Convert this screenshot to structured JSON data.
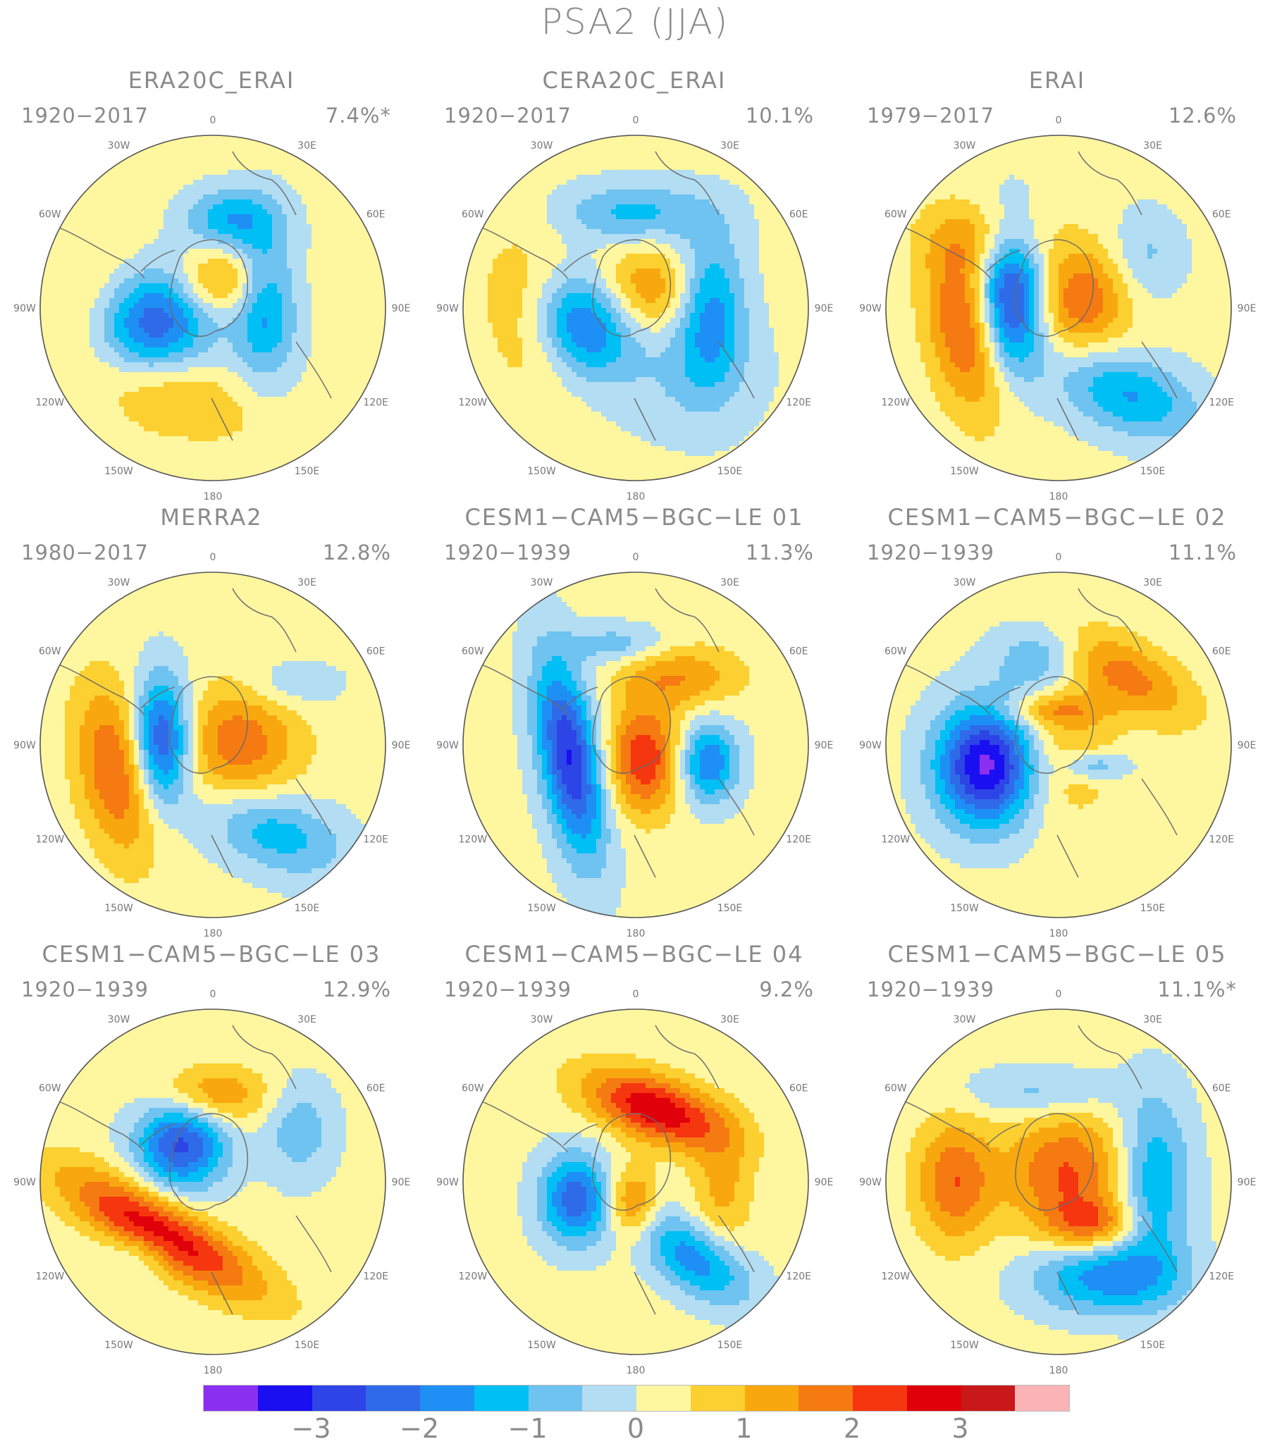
{
  "title": "PSA2 (JJA)",
  "lon_labels": {
    "l0": "0",
    "l30w": "30W",
    "l30e": "30E",
    "l60w": "60W",
    "l60e": "60E",
    "l90w": "90W",
    "l90e": "90E",
    "l120w": "120W",
    "l120e": "120E",
    "l150w": "150W",
    "l150e": "150E",
    "l180": "180"
  },
  "panels": [
    {
      "title": "ERA20C_ERAI",
      "period": "1920−2017",
      "variance": "7.4%*",
      "blobs": [
        [
          -0.35,
          -0.08,
          0.26,
          0.22,
          -3.2,
          40
        ],
        [
          0.3,
          0.05,
          0.13,
          0.3,
          -2.0,
          0
        ],
        [
          0.05,
          0.15,
          0.22,
          0.14,
          1.7,
          0
        ],
        [
          0.1,
          0.52,
          0.18,
          0.12,
          -1.5,
          0
        ],
        [
          -0.55,
          -0.1,
          0.28,
          0.4,
          0.9,
          20
        ],
        [
          -0.2,
          -0.5,
          0.35,
          0.15,
          0.8,
          -20
        ]
      ]
    },
    {
      "title": "CERA20C_ERAI",
      "period": "1920−2017",
      "variance": "10.1%",
      "blobs": [
        [
          -0.3,
          -0.08,
          0.2,
          0.22,
          -2.6,
          30
        ],
        [
          0.43,
          0.0,
          0.14,
          0.3,
          -2.0,
          0
        ],
        [
          0.05,
          0.1,
          0.24,
          0.18,
          1.5,
          0
        ],
        [
          0.0,
          0.55,
          0.3,
          0.12,
          -1.3,
          0
        ],
        [
          -0.6,
          -0.05,
          0.2,
          0.35,
          0.9,
          10
        ],
        [
          0.3,
          -0.4,
          0.3,
          0.25,
          -0.6,
          0
        ]
      ]
    },
    {
      "title": "ERAI",
      "period": "1979−2017",
      "variance": "12.6%",
      "blobs": [
        [
          -0.28,
          0.05,
          0.14,
          0.3,
          -3.4,
          0
        ],
        [
          0.13,
          0.05,
          0.2,
          0.22,
          1.8,
          0
        ],
        [
          -0.52,
          -0.12,
          0.16,
          0.35,
          2.2,
          10
        ],
        [
          0.4,
          -0.5,
          0.3,
          0.16,
          -1.7,
          -20
        ],
        [
          -0.4,
          0.4,
          0.25,
          0.15,
          1.0,
          0
        ],
        [
          0.5,
          0.3,
          0.15,
          0.18,
          -0.8,
          0
        ]
      ]
    },
    {
      "title": "MERRA2",
      "period": "1980−2017",
      "variance": "12.8%",
      "blobs": [
        [
          -0.3,
          0.02,
          0.12,
          0.26,
          -3.1,
          0
        ],
        [
          0.15,
          0.0,
          0.25,
          0.25,
          1.7,
          0
        ],
        [
          -0.55,
          -0.15,
          0.16,
          0.35,
          2.0,
          10
        ],
        [
          0.35,
          -0.5,
          0.3,
          0.16,
          -1.5,
          -20
        ],
        [
          0.45,
          0.35,
          0.2,
          0.1,
          -0.7,
          0
        ]
      ]
    },
    {
      "title": "CESM1−CAM5−BGC−LE 01",
      "period": "1920−1939",
      "variance": "11.3%",
      "blobs": [
        [
          -0.38,
          -0.08,
          0.12,
          0.4,
          -3.2,
          10
        ],
        [
          0.05,
          -0.08,
          0.15,
          0.22,
          2.3,
          0
        ],
        [
          0.42,
          -0.1,
          0.12,
          0.16,
          -2.2,
          0
        ],
        [
          0.25,
          0.4,
          0.25,
          0.13,
          1.3,
          0
        ],
        [
          -0.1,
          0.58,
          0.2,
          0.08,
          -1.0,
          0
        ]
      ]
    },
    {
      "title": "CESM1−CAM5−BGC−LE 02",
      "period": "1920−1939",
      "variance": "11.1%",
      "blobs": [
        [
          -0.42,
          -0.12,
          0.2,
          0.24,
          -3.8,
          0
        ],
        [
          0.4,
          0.4,
          0.3,
          0.14,
          1.5,
          -30
        ],
        [
          -0.1,
          0.5,
          0.18,
          0.14,
          -1.2,
          0
        ],
        [
          0.2,
          -0.12,
          0.14,
          0.06,
          -1.3,
          0
        ],
        [
          0.05,
          0.0,
          0.2,
          0.3,
          0.9,
          0
        ],
        [
          -0.05,
          0.2,
          0.2,
          0.06,
          1.0,
          0
        ]
      ]
    },
    {
      "title": "CESM1−CAM5−BGC−LE 03",
      "period": "1920−1939",
      "variance": "12.9%",
      "blobs": [
        [
          -0.3,
          -0.3,
          0.45,
          0.13,
          2.8,
          -30
        ],
        [
          -0.18,
          0.22,
          0.18,
          0.18,
          -2.8,
          0
        ],
        [
          0.0,
          0.5,
          0.22,
          0.12,
          1.5,
          0
        ],
        [
          0.5,
          0.3,
          0.14,
          0.2,
          -1.0,
          0
        ],
        [
          -0.4,
          -0.4,
          0.15,
          0.1,
          -0.7,
          0
        ],
        [
          -0.1,
          0.1,
          0.3,
          0.4,
          0.0,
          0
        ]
      ]
    },
    {
      "title": "CESM1−CAM5−BGC−LE 04",
      "period": "1920−1939",
      "variance": "9.2%",
      "blobs": [
        [
          0.12,
          0.42,
          0.3,
          0.13,
          2.8,
          -20
        ],
        [
          -0.35,
          -0.1,
          0.14,
          0.18,
          -2.5,
          0
        ],
        [
          0.35,
          -0.45,
          0.25,
          0.13,
          -2.0,
          -35
        ],
        [
          -0.02,
          -0.12,
          0.1,
          0.14,
          1.6,
          0
        ],
        [
          0.5,
          -0.05,
          0.12,
          0.25,
          1.0,
          0
        ]
      ]
    },
    {
      "title": "CESM1−CAM5−BGC−LE 05",
      "period": "1920−1939",
      "variance": "11.1%*",
      "blobs": [
        [
          0.05,
          0.05,
          0.25,
          0.25,
          1.9,
          0
        ],
        [
          0.28,
          -0.55,
          0.3,
          0.15,
          -2.0,
          0
        ],
        [
          0.55,
          0.0,
          0.15,
          0.35,
          -1.7,
          0
        ],
        [
          -0.6,
          0.0,
          0.16,
          0.25,
          1.8,
          0
        ],
        [
          0.2,
          -0.25,
          0.18,
          0.1,
          1.5,
          0
        ],
        [
          -0.1,
          0.52,
          0.3,
          0.1,
          -0.9,
          0
        ]
      ]
    }
  ],
  "colorbar": {
    "colors": [
      "#8b2ff0",
      "#1a0ff0",
      "#2d44e6",
      "#2f6be8",
      "#1e8ff5",
      "#00bff5",
      "#6ec3f0",
      "#b3ddf2",
      "#fff6a0",
      "#fcd030",
      "#f8a80e",
      "#f57a12",
      "#f5360e",
      "#e0000a",
      "#c8181a",
      "#fbb3b5"
    ],
    "labels": [
      "−3",
      "−2",
      "−1",
      "0",
      "1",
      "2",
      "3"
    ]
  }
}
